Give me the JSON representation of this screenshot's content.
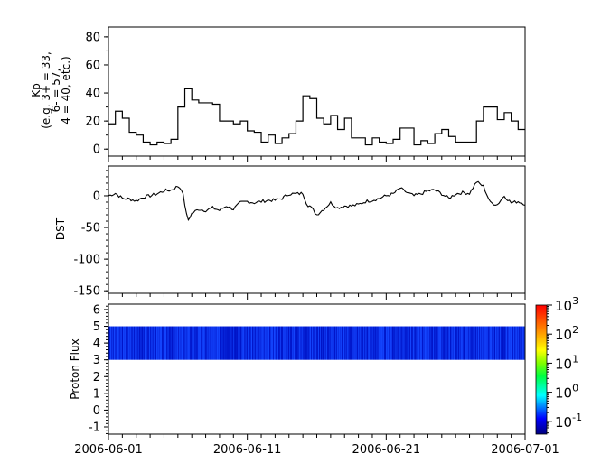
{
  "chart_data": [
    {
      "type": "line",
      "step": true,
      "ylabel": [
        "Kp",
        "(e.g. 3+ = 33,",
        "6- = 57,",
        "4 = 40, etc.)"
      ],
      "ylim": [
        -5,
        87
      ],
      "yticks": [
        0,
        20,
        40,
        60,
        80
      ],
      "xlim_days": [
        0,
        30
      ],
      "x_unit": "days from 2006-06-01, half-day steps",
      "values": [
        18,
        27,
        22,
        12,
        10,
        5,
        3,
        5,
        4,
        7,
        30,
        43,
        35,
        33,
        33,
        32,
        20,
        20,
        18,
        20,
        13,
        12,
        5,
        10,
        4,
        8,
        11,
        20,
        38,
        36,
        22,
        18,
        24,
        14,
        22,
        8,
        8,
        3,
        8,
        5,
        4,
        7,
        15,
        15,
        3,
        6,
        4,
        11,
        14,
        9,
        5,
        5,
        5,
        20,
        30,
        30,
        21,
        26,
        20,
        14
      ],
      "color": "#000000"
    },
    {
      "type": "line",
      "ylabel": "DST",
      "ylim": [
        -154,
        47
      ],
      "yticks": [
        0,
        -50,
        -100,
        -150
      ],
      "x_days": [
        0,
        0.5,
        1,
        1.5,
        2,
        2.5,
        3,
        3.5,
        4,
        4.5,
        5,
        5.3,
        5.5,
        5.7,
        6,
        6.5,
        7,
        7.5,
        8,
        8.5,
        9,
        9.5,
        10,
        10.5,
        11,
        11.5,
        12,
        12.5,
        13,
        13.5,
        14,
        14.3,
        14.5,
        15,
        15.5,
        16,
        16.5,
        17,
        17.5,
        18,
        18.5,
        19,
        19.5,
        20,
        20.5,
        21,
        21.5,
        22,
        22.5,
        23,
        23.5,
        24,
        24.5,
        25,
        25.5,
        26,
        26.5,
        27,
        27.5,
        28,
        28.5,
        29,
        29.5,
        30
      ],
      "values": [
        0,
        4,
        -4,
        -5,
        -8,
        -2,
        0,
        3,
        8,
        9,
        15,
        10,
        -14,
        -40,
        -28,
        -21,
        -23,
        -19,
        -23,
        -16,
        -21,
        -11,
        -9,
        -11,
        -9,
        -7,
        -7,
        -4,
        3,
        3,
        4,
        -14,
        -16,
        -30,
        -21,
        -11,
        -19,
        -16,
        -16,
        -14,
        -9,
        -7,
        -4,
        0,
        3,
        12,
        5,
        0,
        3,
        8,
        9,
        3,
        -4,
        3,
        5,
        4,
        22,
        15,
        -11,
        -14,
        0,
        -11,
        -9,
        -13
      ],
      "color": "#000000"
    },
    {
      "type": "heatmap",
      "ylabel": "Proton Flux",
      "ylim": [
        -1.43,
        6.32
      ],
      "yticks": [
        -1,
        0,
        1,
        2,
        3,
        4,
        5,
        6
      ],
      "band_y": [
        3,
        5
      ],
      "typical_value": 0.15,
      "colorbar": {
        "scale": "log",
        "range_exp": [
          -1.44,
          3
        ],
        "tick_labels": [
          {
            "base": "10",
            "exp": "3"
          },
          {
            "base": "10",
            "exp": "2"
          },
          {
            "base": "10",
            "exp": "1"
          },
          {
            "base": "10",
            "exp": "0"
          },
          {
            "base": "10",
            "exp": "-1"
          }
        ],
        "tick_exps": [
          3,
          2,
          1,
          0,
          -1
        ],
        "colormap": "jet"
      }
    }
  ],
  "x_axis": {
    "tick_labels": [
      "2006-06-01",
      "2006-06-11",
      "2006-06-21",
      "2006-07-01"
    ],
    "tick_days": [
      0,
      10,
      20,
      30
    ]
  }
}
